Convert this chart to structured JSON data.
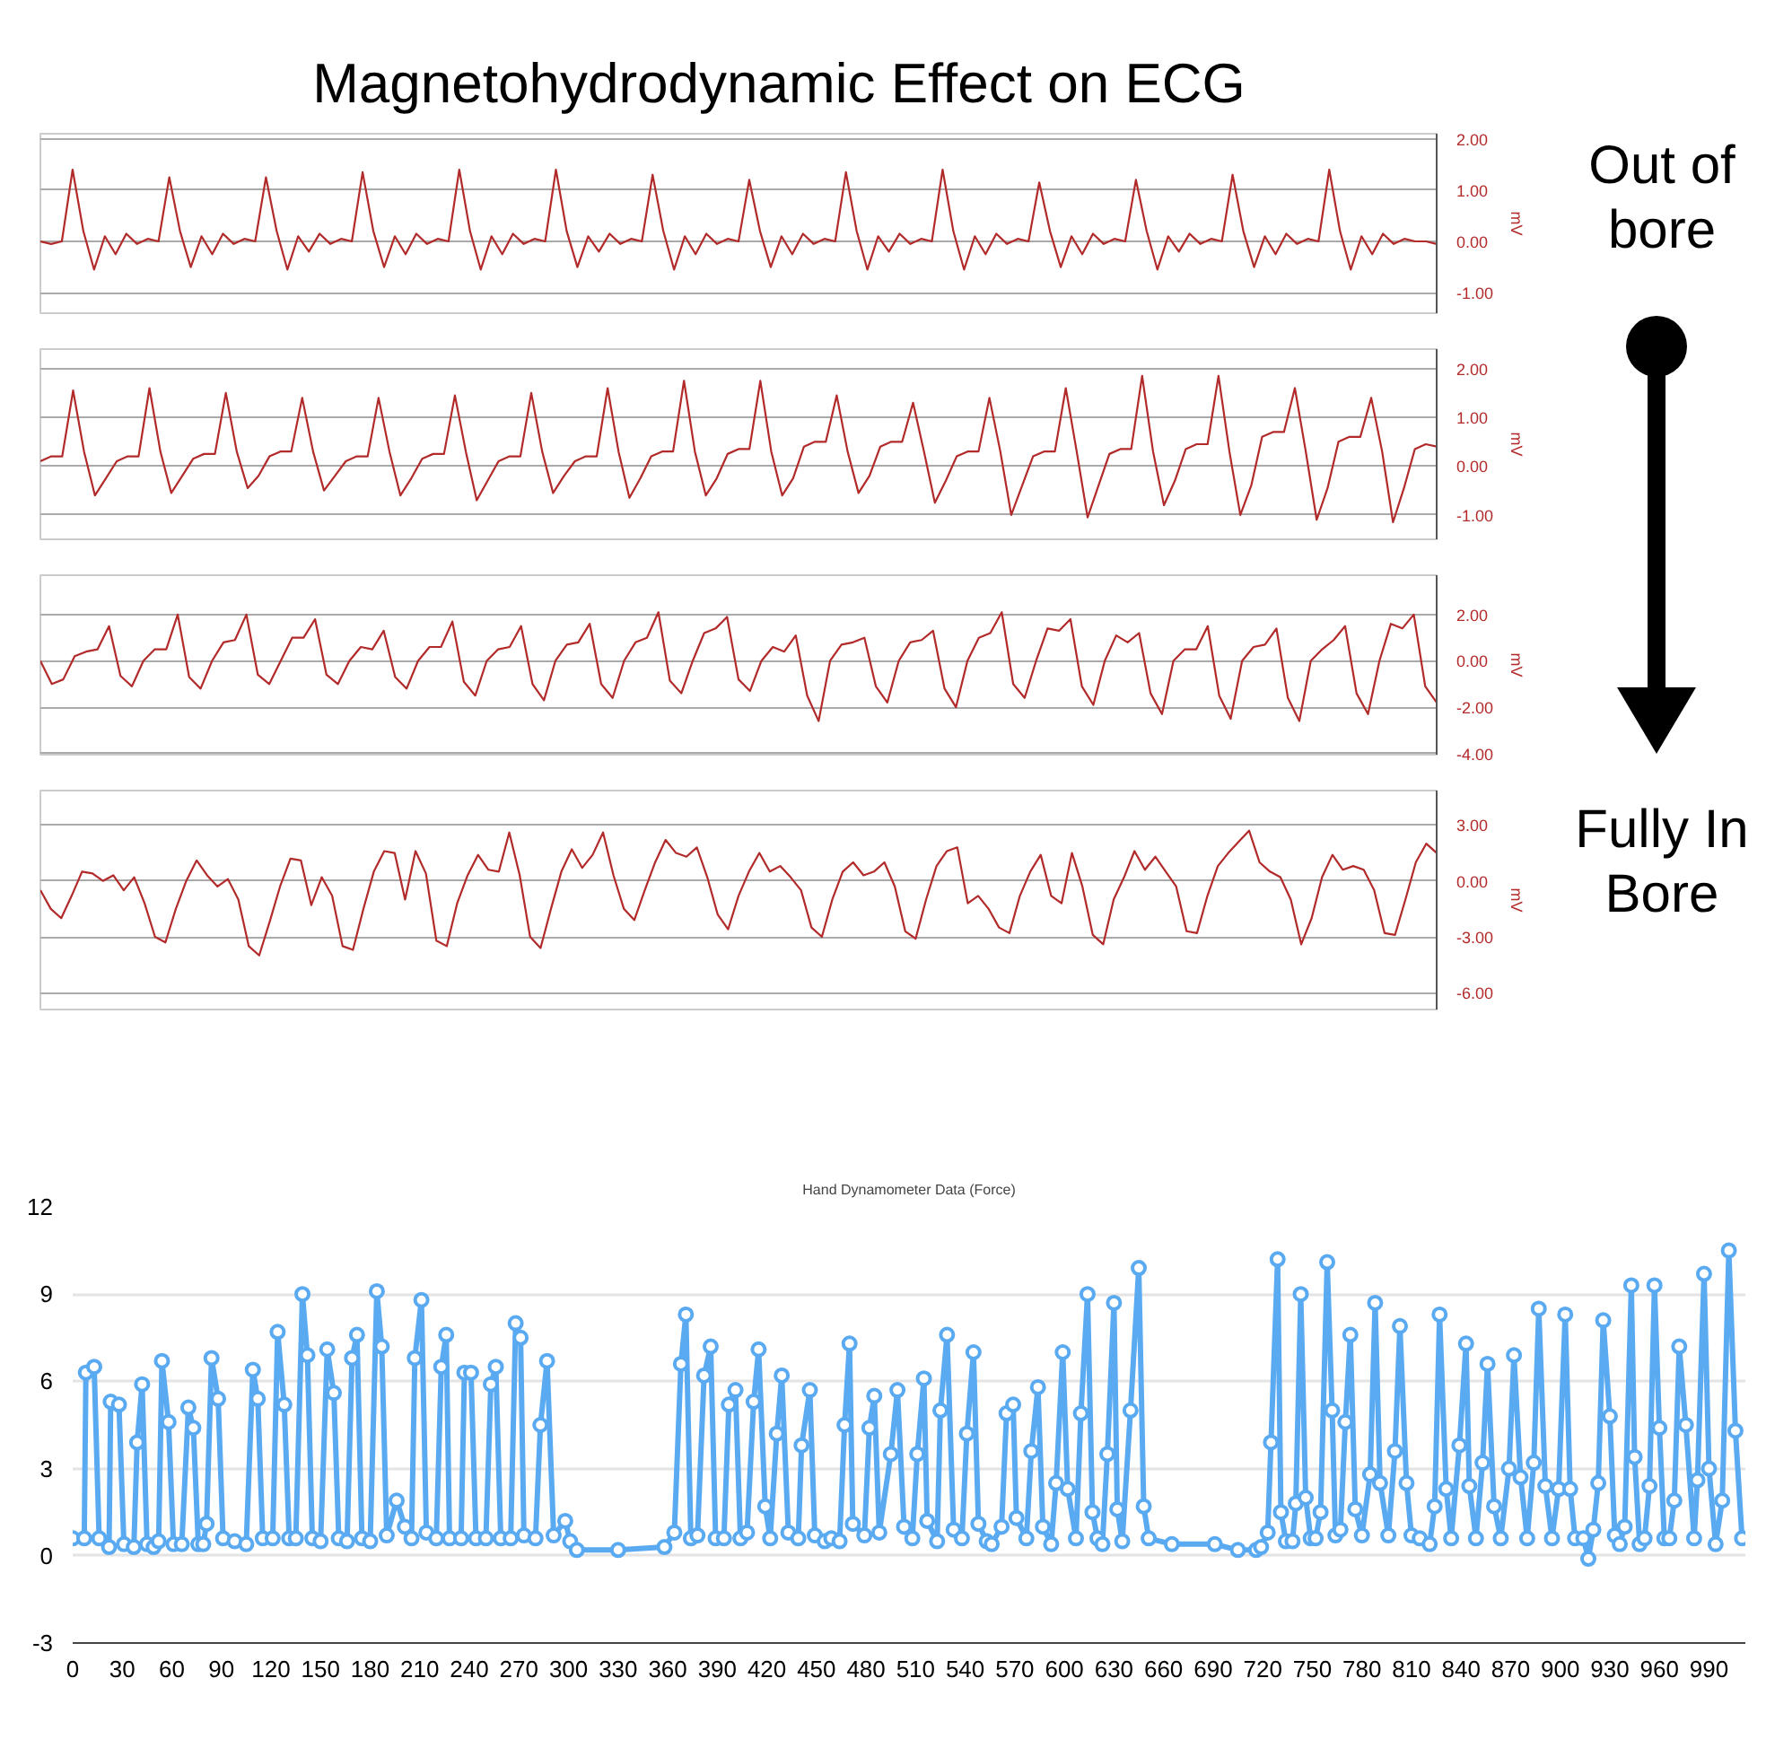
{
  "chart_data": [
    {
      "type": "line",
      "title": "Magnetohydrodynamic Effect on ECG",
      "annotations": [
        "Out of bore",
        "Fully In Bore"
      ],
      "ylabel": "mV",
      "color": "#b22a2a",
      "tick_labels": "y",
      "grid": "y",
      "ylim": [
        -1.4,
        2.1
      ],
      "yticks": [
        {
          "value": 2,
          "label": "2.00"
        },
        {
          "value": 1,
          "label": "1.00"
        },
        {
          "value": 0,
          "label": "0.00"
        },
        {
          "value": -1,
          "label": "-1.00"
        }
      ],
      "categories": [
        null,
        null,
        null,
        null,
        null,
        null,
        null,
        null,
        null,
        null,
        null,
        null,
        null,
        null,
        null,
        null,
        null,
        null,
        null,
        null,
        null,
        null,
        null,
        null,
        null,
        null,
        null,
        null,
        null,
        null,
        null,
        null,
        null,
        null,
        null,
        null,
        null,
        null,
        null,
        null,
        null,
        null,
        null,
        null,
        null,
        null,
        null,
        null,
        null,
        null,
        null,
        null,
        null,
        null,
        null,
        null,
        null,
        null,
        null,
        null,
        null,
        null,
        null,
        null,
        null,
        null,
        null,
        null,
        null,
        null,
        null,
        null,
        null,
        null,
        null,
        null,
        null,
        null,
        null,
        null,
        null,
        null,
        null,
        null,
        null,
        null,
        null,
        null,
        null,
        null,
        null,
        null,
        null,
        null,
        null,
        null,
        null,
        null,
        null,
        null,
        null,
        null,
        null,
        null,
        null,
        null,
        null,
        null,
        null,
        null,
        null,
        null,
        null,
        null,
        null,
        null,
        null,
        null,
        null,
        null,
        null,
        null,
        null,
        null,
        null,
        null,
        null,
        null,
        null,
        null,
        null
      ],
      "values": [
        0,
        -0.05,
        0,
        1.4,
        0.2,
        -0.55,
        0.1,
        -0.25,
        0.15,
        -0.05,
        0.05,
        0,
        1.25,
        0.2,
        -0.5,
        0.1,
        -0.25,
        0.15,
        -0.05,
        0.05,
        0,
        1.25,
        0.2,
        -0.55,
        0.1,
        -0.2,
        0.15,
        -0.05,
        0.05,
        0,
        1.35,
        0.2,
        -0.5,
        0.1,
        -0.25,
        0.15,
        -0.05,
        0.05,
        0,
        1.4,
        0.2,
        -0.55,
        0.1,
        -0.25,
        0.15,
        -0.05,
        0.05,
        0,
        1.4,
        0.2,
        -0.5,
        0.1,
        -0.2,
        0.15,
        -0.05,
        0.05,
        0,
        1.3,
        0.2,
        -0.55,
        0.1,
        -0.25,
        0.15,
        -0.05,
        0.05,
        0,
        1.2,
        0.2,
        -0.5,
        0.1,
        -0.25,
        0.15,
        -0.05,
        0.05,
        0,
        1.35,
        0.2,
        -0.55,
        0.1,
        -0.2,
        0.15,
        -0.05,
        0.05,
        0,
        1.4,
        0.2,
        -0.55,
        0.1,
        -0.25,
        0.15,
        -0.05,
        0.05,
        0,
        1.15,
        0.2,
        -0.5,
        0.1,
        -0.25,
        0.15,
        -0.05,
        0.05,
        0,
        1.2,
        0.2,
        -0.55,
        0.1,
        -0.2,
        0.15,
        -0.05,
        0.05,
        0,
        1.3,
        0.2,
        -0.5,
        0.1,
        -0.25,
        0.15,
        -0.05,
        0.05,
        0,
        1.4,
        0.2,
        -0.55,
        0.1,
        -0.25,
        0.15,
        -0.05,
        0.05,
        0,
        0,
        -0.05
      ]
    },
    {
      "type": "line",
      "ylabel": "mV",
      "color": "#b22a2a",
      "tick_labels": "y",
      "grid": "y",
      "ylim": [
        -1.5,
        2.4
      ],
      "yticks": [
        {
          "value": 2,
          "label": "2.00"
        },
        {
          "value": 1,
          "label": "1.00"
        },
        {
          "value": 0,
          "label": "0.00"
        },
        {
          "value": -1,
          "label": "-1.00"
        }
      ],
      "categories": [
        null,
        null,
        null,
        null,
        null,
        null,
        null,
        null,
        null,
        null,
        null,
        null,
        null,
        null,
        null,
        null,
        null,
        null,
        null,
        null,
        null,
        null,
        null,
        null,
        null,
        null,
        null,
        null,
        null,
        null,
        null,
        null,
        null,
        null,
        null,
        null,
        null,
        null,
        null,
        null,
        null,
        null,
        null,
        null,
        null,
        null,
        null,
        null,
        null,
        null,
        null,
        null,
        null,
        null,
        null,
        null,
        null,
        null,
        null,
        null,
        null,
        null,
        null,
        null,
        null,
        null,
        null,
        null,
        null,
        null,
        null,
        null,
        null,
        null,
        null,
        null,
        null,
        null,
        null,
        null,
        null,
        null,
        null,
        null,
        null,
        null,
        null,
        null,
        null,
        null,
        null,
        null,
        null,
        null,
        null,
        null,
        null,
        null,
        null,
        null,
        null,
        null,
        null,
        null,
        null,
        null,
        null,
        null,
        null,
        null,
        null,
        null,
        null,
        null,
        null,
        null,
        null,
        null,
        null,
        null,
        null,
        null,
        null,
        null,
        null,
        null,
        null,
        null,
        null
      ],
      "values": [
        0.1,
        0.2,
        0.2,
        1.55,
        0.3,
        -0.6,
        -0.25,
        0.1,
        0.2,
        0.2,
        1.6,
        0.3,
        -0.55,
        -0.2,
        0.15,
        0.25,
        0.25,
        1.5,
        0.3,
        -0.45,
        -0.2,
        0.2,
        0.3,
        0.3,
        1.4,
        0.3,
        -0.5,
        -0.2,
        0.1,
        0.2,
        0.2,
        1.4,
        0.3,
        -0.6,
        -0.25,
        0.15,
        0.25,
        0.25,
        1.45,
        0.3,
        -0.7,
        -0.3,
        0.1,
        0.2,
        0.2,
        1.5,
        0.3,
        -0.55,
        -0.2,
        0.1,
        0.2,
        0.2,
        1.6,
        0.3,
        -0.65,
        -0.25,
        0.2,
        0.3,
        0.3,
        1.75,
        0.3,
        -0.6,
        -0.25,
        0.25,
        0.35,
        0.35,
        1.75,
        0.3,
        -0.6,
        -0.25,
        0.4,
        0.5,
        0.5,
        1.45,
        0.3,
        -0.55,
        -0.2,
        0.4,
        0.5,
        0.5,
        1.3,
        0.3,
        -0.75,
        -0.3,
        0.2,
        0.3,
        0.3,
        1.4,
        0.3,
        -1.0,
        -0.4,
        0.2,
        0.3,
        0.3,
        1.6,
        0.3,
        -1.05,
        -0.4,
        0.25,
        0.35,
        0.35,
        1.85,
        0.3,
        -0.8,
        -0.3,
        0.35,
        0.45,
        0.45,
        1.85,
        0.3,
        -1.0,
        -0.4,
        0.6,
        0.7,
        0.7,
        1.6,
        0.3,
        -1.1,
        -0.45,
        0.5,
        0.6,
        0.6,
        1.4,
        0.3,
        -1.15,
        -0.45,
        0.35,
        0.45,
        0.4
      ]
    },
    {
      "type": "line",
      "ylabel": "mV",
      "color": "#b22a2a",
      "tick_labels": "y",
      "grid": "y",
      "ylim": [
        -4.05,
        3.7
      ],
      "yticks": [
        {
          "value": 2,
          "label": "2.00"
        },
        {
          "value": 0,
          "label": "0.00"
        },
        {
          "value": -2,
          "label": "-2.00"
        },
        {
          "value": -4,
          "label": "-4.00"
        }
      ],
      "categories": [
        null,
        null,
        null,
        null,
        null,
        null,
        null,
        null,
        null,
        null,
        null,
        null,
        null,
        null,
        null,
        null,
        null,
        null,
        null,
        null,
        null,
        null,
        null,
        null,
        null,
        null,
        null,
        null,
        null,
        null,
        null,
        null,
        null,
        null,
        null,
        null,
        null,
        null,
        null,
        null,
        null,
        null,
        null,
        null,
        null,
        null,
        null,
        null,
        null,
        null,
        null,
        null,
        null,
        null,
        null,
        null,
        null,
        null,
        null,
        null,
        null,
        null,
        null,
        null,
        null,
        null,
        null,
        null,
        null,
        null,
        null,
        null,
        null,
        null,
        null,
        null,
        null,
        null,
        null,
        null,
        null,
        null,
        null,
        null,
        null,
        null,
        null,
        null,
        null,
        null,
        null,
        null,
        null,
        null,
        null,
        null,
        null,
        null,
        null,
        null,
        null,
        null,
        null,
        null,
        null,
        null,
        null,
        null,
        null,
        null,
        null,
        null,
        null,
        null,
        null,
        null,
        null,
        null,
        null,
        null,
        null,
        null,
        null
      ],
      "values": [
        0,
        -1,
        -0.8,
        0.2,
        0.4,
        0.5,
        1.5,
        -0.65,
        -1.1,
        0,
        0.5,
        0.5,
        2.0,
        -0.7,
        -1.2,
        0,
        0.8,
        0.9,
        2.0,
        -0.6,
        -1.0,
        0,
        1.0,
        1.0,
        1.8,
        -0.6,
        -1.0,
        0,
        0.6,
        0.5,
        1.3,
        -0.7,
        -1.2,
        0,
        0.6,
        0.6,
        1.7,
        -0.9,
        -1.5,
        0,
        0.5,
        0.6,
        1.5,
        -1.0,
        -1.7,
        0,
        0.7,
        0.8,
        1.6,
        -1.0,
        -1.6,
        0,
        0.8,
        1.0,
        2.1,
        -0.85,
        -1.4,
        0,
        1.2,
        1.4,
        1.9,
        -0.8,
        -1.3,
        0,
        0.6,
        0.4,
        1.1,
        -1.5,
        -2.6,
        0,
        0.7,
        0.8,
        1.0,
        -1.1,
        -1.8,
        0,
        0.8,
        0.9,
        1.3,
        -1.2,
        -2.0,
        0,
        1.0,
        1.2,
        2.1,
        -1.0,
        -1.6,
        0,
        1.4,
        1.3,
        1.8,
        -1.1,
        -1.9,
        0,
        1.1,
        0.8,
        1.2,
        -1.4,
        -2.3,
        0,
        0.5,
        0.5,
        1.5,
        -1.5,
        -2.5,
        0,
        0.6,
        0.7,
        1.4,
        -1.6,
        -2.6,
        0,
        0.5,
        0.9,
        1.5,
        -1.4,
        -2.3,
        0,
        1.6,
        1.4,
        2.0,
        -1.1,
        -1.8
      ]
    },
    {
      "type": "line",
      "ylabel": "mV",
      "color": "#b22a2a",
      "tick_labels": "y",
      "grid": "y",
      "ylim": [
        -6.9,
        4.85
      ],
      "yticks": [
        {
          "value": 3,
          "label": "3.00"
        },
        {
          "value": 0,
          "label": "0.00"
        },
        {
          "value": -3,
          "label": "-3.00"
        },
        {
          "value": -6,
          "label": "-6.00"
        }
      ],
      "categories": [
        null,
        null,
        null,
        null,
        null,
        null,
        null,
        null,
        null,
        null,
        null,
        null,
        null,
        null,
        null,
        null,
        null,
        null,
        null,
        null,
        null,
        null,
        null,
        null,
        null,
        null,
        null,
        null,
        null,
        null,
        null,
        null,
        null,
        null,
        null,
        null,
        null,
        null,
        null,
        null,
        null,
        null,
        null,
        null,
        null,
        null,
        null,
        null,
        null,
        null,
        null,
        null,
        null,
        null,
        null,
        null,
        null,
        null,
        null,
        null,
        null,
        null,
        null,
        null,
        null,
        null,
        null,
        null,
        null,
        null,
        null,
        null,
        null,
        null,
        null,
        null,
        null,
        null,
        null,
        null,
        null,
        null,
        null,
        null,
        null,
        null,
        null,
        null,
        null,
        null,
        null,
        null,
        null,
        null,
        null,
        null,
        null,
        null,
        null,
        null,
        null,
        null,
        null,
        null,
        null,
        null,
        null,
        null,
        null,
        null,
        null,
        null,
        null,
        null,
        null,
        null,
        null,
        null,
        null,
        null,
        null,
        null,
        null,
        null,
        null,
        null,
        null,
        null,
        null,
        null,
        null,
        null,
        null,
        null,
        null
      ],
      "values": [
        -0.5,
        -1.5,
        -2,
        -0.8,
        0.5,
        0.4,
        0,
        0.3,
        -0.5,
        0.2,
        -1.2,
        -3.0,
        -3.3,
        -1.5,
        0,
        1.1,
        0.3,
        -0.3,
        0.1,
        -1.0,
        -3.5,
        -4.0,
        -2.2,
        -0.3,
        1.2,
        1.1,
        -1.3,
        0.2,
        -0.8,
        -3.5,
        -3.7,
        -1.5,
        0.5,
        1.6,
        1.5,
        -1.0,
        1.6,
        0.4,
        -3.2,
        -3.5,
        -1.2,
        0.3,
        1.4,
        0.6,
        0.5,
        2.6,
        0.3,
        -3.0,
        -3.6,
        -1.5,
        0.5,
        1.7,
        0.7,
        1.4,
        2.6,
        0.3,
        -1.5,
        -2.1,
        -0.5,
        1.0,
        2.2,
        1.5,
        1.3,
        1.8,
        0.2,
        -1.8,
        -2.6,
        -0.8,
        0.5,
        1.5,
        0.5,
        0.8,
        0.2,
        -0.5,
        -2.5,
        -3.0,
        -1.0,
        0.5,
        1.0,
        0.3,
        0.5,
        1.0,
        -0.3,
        -2.7,
        -3.1,
        -1.0,
        0.8,
        1.6,
        1.8,
        -1.2,
        -0.8,
        -1.5,
        -2.5,
        -2.8,
        -0.8,
        0.5,
        1.4,
        -0.8,
        -1.2,
        1.5,
        -0.3,
        -2.9,
        -3.4,
        -1.0,
        0.2,
        1.6,
        0.6,
        1.3,
        0.5,
        -0.3,
        -2.7,
        -2.8,
        -0.8,
        0.8,
        1.5,
        2.1,
        2.7,
        1.0,
        0.5,
        0.2,
        -1.0,
        -3.4,
        -2.0,
        0.2,
        1.4,
        0.6,
        0.8,
        0.6,
        -0.5,
        -2.8,
        -2.9,
        -1.0,
        1.0,
        2.0,
        1.5
      ]
    },
    {
      "type": "line",
      "title": "Hand Dynamometer Data (Force)",
      "color": "#5aaaf2",
      "marker": "circle",
      "grid": "y",
      "xlim": [
        0,
        1012
      ],
      "ylim": [
        -3,
        12
      ],
      "yticks": [
        -3,
        0,
        3,
        6,
        9,
        12
      ],
      "xticks": [
        0,
        30,
        60,
        90,
        120,
        150,
        180,
        210,
        240,
        270,
        300,
        330,
        360,
        390,
        420,
        450,
        480,
        510,
        540,
        570,
        600,
        630,
        660,
        690,
        720,
        750,
        780,
        810,
        840,
        870,
        900,
        930,
        960,
        990
      ],
      "x": [
        0,
        7,
        8,
        13,
        16,
        22,
        23,
        28,
        31,
        37,
        39,
        42,
        45,
        49,
        52,
        54,
        58,
        61,
        66,
        70,
        73,
        76,
        79,
        81,
        84,
        88,
        91,
        98,
        105,
        109,
        112,
        115,
        121,
        124,
        128,
        131,
        135,
        139,
        142,
        145,
        150,
        154,
        158,
        161,
        166,
        169,
        172,
        175,
        180,
        184,
        187,
        190,
        196,
        201,
        205,
        207,
        211,
        214,
        220,
        223,
        226,
        228,
        235,
        237,
        241,
        244,
        250,
        253,
        256,
        259,
        265,
        268,
        271,
        273,
        280,
        283,
        287,
        291,
        298,
        301,
        305,
        330,
        358,
        364,
        368,
        371,
        374,
        378,
        382,
        386,
        389,
        394,
        397,
        401,
        404,
        408,
        412,
        415,
        419,
        422,
        426,
        429,
        433,
        439,
        441,
        446,
        449,
        455,
        459,
        464,
        467,
        470,
        472,
        479,
        482,
        485,
        488,
        495,
        499,
        503,
        508,
        511,
        515,
        517,
        523,
        525,
        529,
        533,
        538,
        541,
        545,
        548,
        553,
        556,
        562,
        565,
        569,
        571,
        577,
        580,
        584,
        587,
        592,
        595,
        599,
        602,
        607,
        610,
        614,
        617,
        620,
        623,
        626,
        630,
        632,
        635,
        640,
        645,
        648,
        651,
        665,
        691,
        705,
        716,
        719,
        723,
        725,
        729,
        731,
        734,
        738,
        740,
        743,
        746,
        749,
        752,
        755,
        759,
        762,
        764,
        767,
        770,
        773,
        776,
        780,
        785,
        788,
        791,
        796,
        800,
        803,
        807,
        810,
        815,
        821,
        824,
        827,
        831,
        834,
        839,
        843,
        845,
        849,
        853,
        856,
        860,
        864,
        869,
        872,
        876,
        880,
        884,
        887,
        891,
        895,
        899,
        903,
        906,
        909,
        914,
        917,
        920,
        923,
        926,
        930,
        933,
        936,
        939,
        943,
        945,
        948,
        951,
        954,
        957,
        960,
        963,
        966,
        969,
        972,
        976,
        981,
        983,
        987,
        990,
        994,
        998,
        1002,
        1006,
        1010
      ],
      "values": [
        0.6,
        0.6,
        6.3,
        6.5,
        0.6,
        0.3,
        5.3,
        5.2,
        0.4,
        0.3,
        3.9,
        5.9,
        0.4,
        0.3,
        0.5,
        6.7,
        4.6,
        0.4,
        0.4,
        5.1,
        4.4,
        0.4,
        0.4,
        1.1,
        6.8,
        5.4,
        0.6,
        0.5,
        0.4,
        6.4,
        5.4,
        0.6,
        0.6,
        7.7,
        5.2,
        0.6,
        0.6,
        9.0,
        6.9,
        0.6,
        0.5,
        7.1,
        5.6,
        0.6,
        0.5,
        6.8,
        7.6,
        0.6,
        0.5,
        9.1,
        7.2,
        0.7,
        1.9,
        1.0,
        0.6,
        6.8,
        8.8,
        0.8,
        0.6,
        6.5,
        7.6,
        0.6,
        0.6,
        6.3,
        6.3,
        0.6,
        0.6,
        5.9,
        6.5,
        0.6,
        0.6,
        8.0,
        7.5,
        0.7,
        0.6,
        4.5,
        6.7,
        0.7,
        1.2,
        0.5,
        0.2,
        0.2,
        0.3,
        0.8,
        6.6,
        8.3,
        0.6,
        0.7,
        6.2,
        7.2,
        0.6,
        0.6,
        5.2,
        5.7,
        0.6,
        0.8,
        5.3,
        7.1,
        1.7,
        0.6,
        4.2,
        6.2,
        0.8,
        0.6,
        3.8,
        5.7,
        0.7,
        0.5,
        0.6,
        0.5,
        4.5,
        7.3,
        1.1,
        0.7,
        4.4,
        5.5,
        0.8,
        3.5,
        5.7,
        1.0,
        0.6,
        3.5,
        6.1,
        1.2,
        0.5,
        5.0,
        7.6,
        0.9,
        0.6,
        4.2,
        7.0,
        1.1,
        0.5,
        0.4,
        1.0,
        4.9,
        5.2,
        1.3,
        0.6,
        3.6,
        5.8,
        1.0,
        0.4,
        2.5,
        7.0,
        2.3,
        0.6,
        4.9,
        9.0,
        1.5,
        0.6,
        0.4,
        3.5,
        8.7,
        1.6,
        0.5,
        5.0,
        9.9,
        1.7,
        0.6,
        0.4,
        0.4,
        0.2,
        0.2,
        0.3,
        0.8,
        3.9,
        10.2,
        1.5,
        0.5,
        0.5,
        1.8,
        9.0,
        2.0,
        0.6,
        0.6,
        1.5,
        10.1,
        5.0,
        0.7,
        0.9,
        4.6,
        7.6,
        1.6,
        0.7,
        2.8,
        8.7,
        2.5,
        0.7,
        3.6,
        7.9,
        2.5,
        0.7,
        0.6,
        0.4,
        1.7,
        8.3,
        2.3,
        0.6,
        3.8,
        7.3,
        2.4,
        0.6,
        3.2,
        6.6,
        1.7,
        0.6,
        3.0,
        6.9,
        2.7,
        0.6,
        3.2,
        8.5,
        2.4,
        0.6,
        2.3,
        8.3,
        2.3,
        0.6,
        0.6,
        -0.1,
        0.9,
        2.5,
        8.1,
        4.8,
        0.7,
        0.4,
        1.0,
        9.3,
        3.4,
        0.4,
        0.6,
        2.4,
        9.3,
        4.4,
        0.6,
        0.6,
        1.9,
        7.2,
        4.5,
        0.6,
        2.6,
        9.7,
        3.0,
        0.4,
        1.9,
        10.5,
        4.3,
        0.6
      ]
    }
  ]
}
